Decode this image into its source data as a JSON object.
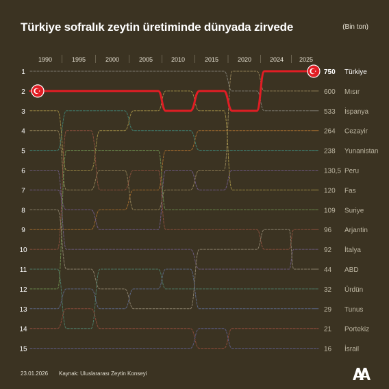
{
  "title": "Türkiye sofralık zeytin üretiminde dünyada zirvede",
  "unit": "(Bin ton)",
  "footer": {
    "date": "23.01.2026",
    "source": "Kaynak: Uluslararası Zeytin Konseyi",
    "logo": "AA"
  },
  "colors": {
    "background": "#3b3322",
    "highlight": "#e11d24",
    "faded_text": "#bdb6a2",
    "grid": "#6c6451"
  },
  "chart_data": {
    "type": "bump",
    "years": [
      "1990",
      "1995",
      "2000",
      "2005",
      "2010",
      "2015",
      "2020",
      "2024",
      "2025"
    ],
    "rank_labels": [
      "1",
      "2",
      "3",
      "4",
      "5",
      "6",
      "7",
      "8",
      "9",
      "10",
      "11",
      "12",
      "13",
      "14",
      "15"
    ],
    "highlight_series": "Türkiye",
    "series": [
      {
        "name": "Türkiye",
        "value_2025": "750",
        "color": "#e11d24",
        "ranks": [
          2,
          2,
          2,
          2,
          3,
          2,
          3,
          1,
          1
        ]
      },
      {
        "name": "Mısır",
        "value_2025": "600",
        "color": "#8f7f55",
        "ranks": [
          4,
          7,
          6,
          8,
          7,
          6,
          1,
          2,
          2
        ]
      },
      {
        "name": "İspanya",
        "value_2025": "533",
        "color": "#7c7a70",
        "ranks": [
          1,
          1,
          1,
          1,
          1,
          1,
          2,
          3,
          3
        ]
      },
      {
        "name": "Cezayir",
        "value_2025": "264",
        "color": "#a06a2e",
        "ranks": [
          9,
          9,
          8,
          7,
          5,
          4,
          4,
          4,
          4
        ]
      },
      {
        "name": "Yunanistan",
        "value_2025": "238",
        "color": "#3f7e6f",
        "ranks": [
          5,
          3,
          3,
          4,
          4,
          5,
          5,
          5,
          5
        ]
      },
      {
        "name": "Peru",
        "value_2025": "130,5",
        "color": "#6e5a86",
        "ranks": [
          7,
          8,
          9,
          9,
          6,
          7,
          6,
          6,
          6
        ]
      },
      {
        "name": "Fas",
        "value_2025": "120",
        "color": "#9c8a45",
        "ranks": [
          3,
          6,
          4,
          3,
          2,
          3,
          7,
          7,
          7
        ]
      },
      {
        "name": "Suriye",
        "value_2025": "109",
        "color": "#6b8a4d",
        "ranks": [
          12,
          5,
          5,
          5,
          8,
          8,
          8,
          8,
          8
        ]
      },
      {
        "name": "Arjantin",
        "value_2025": "96",
        "color": "#8a4f3d",
        "ranks": [
          10,
          4,
          7,
          6,
          9,
          9,
          9,
          10,
          9
        ]
      },
      {
        "name": "İtalya",
        "value_2025": "92",
        "color": "#6b5a7d",
        "ranks": [
          6,
          10,
          10,
          10,
          10,
          11,
          11,
          11,
          10
        ]
      },
      {
        "name": "ABD",
        "value_2025": "44",
        "color": "#8a7f6a",
        "ranks": [
          8,
          11,
          12,
          13,
          13,
          10,
          10,
          9,
          11
        ]
      },
      {
        "name": "Ürdün",
        "value_2025": "32",
        "color": "#4d7a66",
        "ranks": [
          11,
          14,
          11,
          11,
          12,
          12,
          12,
          12,
          12
        ]
      },
      {
        "name": "Tunus",
        "value_2025": "29",
        "color": "#5b6582",
        "ranks": [
          13,
          12,
          13,
          12,
          11,
          13,
          13,
          13,
          13
        ]
      },
      {
        "name": "Portekiz",
        "value_2025": "21",
        "color": "#8a4a3a",
        "ranks": [
          14,
          13,
          14,
          14,
          14,
          15,
          14,
          14,
          14
        ]
      },
      {
        "name": "İsrail",
        "value_2025": "16",
        "color": "#5b5a80",
        "ranks": [
          15,
          15,
          15,
          15,
          15,
          14,
          15,
          15,
          15
        ]
      }
    ]
  }
}
